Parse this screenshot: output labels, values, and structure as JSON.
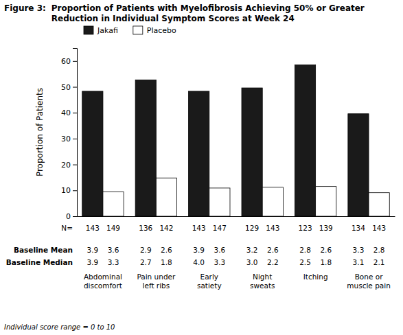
{
  "chart_data": {
    "type": "bar",
    "title": "Figure 3:",
    "subtitle": "Proportion of Patients with Myelofibrosis Achieving 50% or Greater\nReduction in Individual Symptom Scores at Week 24",
    "categories": [
      "Abdominal\ndiscomfort",
      "Pain under\nleft ribs",
      "Early\nsatiety",
      "Night\nsweats",
      "Itching",
      "Bone or\nmuscle pain"
    ],
    "series": [
      {
        "name": "Jakafi",
        "color": "#1a1a1a",
        "values": [
          48.3,
          52.7,
          48.3,
          49.6,
          58.5,
          39.6
        ]
      },
      {
        "name": "Placebo",
        "color": "#ffffff",
        "values": [
          9.4,
          14.8,
          10.9,
          11.2,
          11.5,
          9.1
        ]
      }
    ],
    "table": [
      {
        "label": "N=",
        "values": [
          [
            143,
            136,
            143,
            129,
            123,
            134
          ],
          [
            149,
            142,
            147,
            143,
            139,
            143
          ]
        ]
      },
      {
        "label": "Baseline Mean",
        "values": [
          [
            "3.9",
            "2.9",
            "3.9",
            "3.2",
            "2.8",
            "3.3"
          ],
          [
            "3.6",
            "2.6",
            "3.6",
            "2.6",
            "2.6",
            "2.8"
          ]
        ]
      },
      {
        "label": "Baseline Median",
        "values": [
          [
            "3.9",
            "2.7",
            "4.0",
            "3.0",
            "2.5",
            "3.1"
          ],
          [
            "3.3",
            "1.8",
            "3.3",
            "2.2",
            "1.8",
            "2.1"
          ]
        ]
      }
    ],
    "ylabel": "Proportion of Patients",
    "ylim": [
      0,
      65
    ],
    "yticks": [
      0,
      10,
      20,
      30,
      40,
      50,
      60
    ],
    "footnote": "Individual score range = 0 to 10",
    "legend": "top",
    "grid": false
  }
}
